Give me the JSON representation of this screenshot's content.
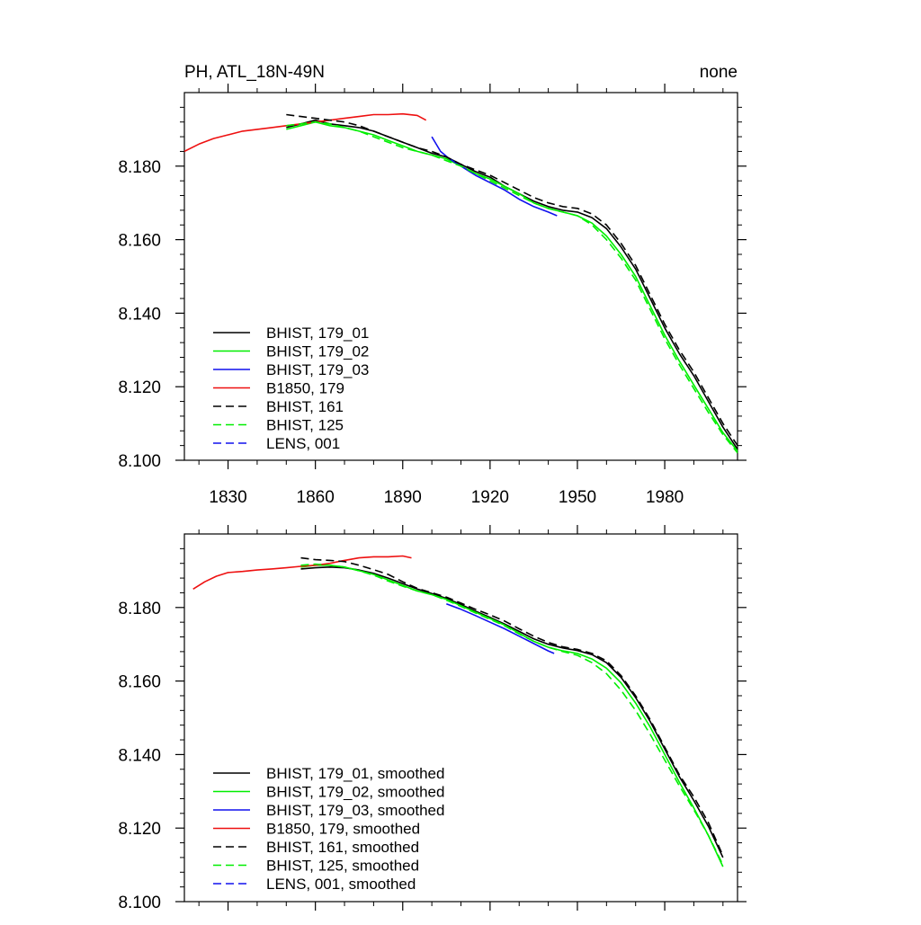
{
  "title_left": "PH, ATL_18N-49N",
  "title_right": "none",
  "chart_data": [
    {
      "type": "line",
      "panel": "top",
      "xlim": [
        1815,
        2005
      ],
      "ylim": [
        8.1,
        8.2
      ],
      "x_ticks": [
        1830,
        1860,
        1890,
        1920,
        1950,
        1980
      ],
      "x_tick_labels": [
        "1830",
        "1860",
        "1890",
        "1920",
        "1950",
        "1980"
      ],
      "y_ticks": [
        8.1,
        8.12,
        8.14,
        8.16,
        8.18
      ],
      "y_tick_labels": [
        "8.100",
        "8.120",
        "8.140",
        "8.160",
        "8.180"
      ],
      "legend_placement": "bottom-left",
      "series": [
        {
          "name": "BHIST, 179_01",
          "color": "#000000",
          "dash": "solid",
          "x": [
            1850,
            1855,
            1860,
            1865,
            1870,
            1875,
            1880,
            1885,
            1890,
            1895,
            1900,
            1905,
            1910,
            1915,
            1920,
            1925,
            1930,
            1935,
            1940,
            1945,
            1950,
            1955,
            1960,
            1965,
            1970,
            1975,
            1980,
            1985,
            1990,
            1995,
            2000,
            2005
          ],
          "y": [
            8.1905,
            8.1915,
            8.1925,
            8.1915,
            8.191,
            8.1905,
            8.1895,
            8.188,
            8.1865,
            8.185,
            8.1835,
            8.1825,
            8.1805,
            8.1785,
            8.177,
            8.1745,
            8.1725,
            8.1705,
            8.169,
            8.168,
            8.1675,
            8.166,
            8.163,
            8.158,
            8.152,
            8.144,
            8.136,
            8.129,
            8.123,
            8.116,
            8.109,
            8.103
          ]
        },
        {
          "name": "BHIST, 179_02",
          "color": "#00ee00",
          "dash": "solid",
          "x": [
            1850,
            1855,
            1860,
            1865,
            1870,
            1875,
            1880,
            1885,
            1890,
            1895,
            1900,
            1905,
            1910,
            1915,
            1920,
            1925,
            1930,
            1935,
            1940,
            1945,
            1950,
            1955,
            1960,
            1965,
            1970,
            1975,
            1980,
            1985,
            1990,
            1995,
            2000,
            2005
          ],
          "y": [
            8.19,
            8.191,
            8.192,
            8.191,
            8.1905,
            8.1895,
            8.1885,
            8.187,
            8.1855,
            8.184,
            8.183,
            8.182,
            8.18,
            8.178,
            8.1765,
            8.1745,
            8.1725,
            8.17,
            8.1685,
            8.1675,
            8.1665,
            8.1645,
            8.161,
            8.156,
            8.15,
            8.142,
            8.134,
            8.127,
            8.1205,
            8.114,
            8.1075,
            8.1025
          ]
        },
        {
          "name": "BHIST, 179_03",
          "color": "#1010ee",
          "dash": "solid",
          "x": [
            1900,
            1903,
            1906,
            1910,
            1915,
            1920,
            1925,
            1930,
            1935,
            1940,
            1943
          ],
          "y": [
            8.188,
            8.184,
            8.182,
            8.18,
            8.1775,
            8.1755,
            8.1735,
            8.171,
            8.169,
            8.1675,
            8.1665
          ]
        },
        {
          "name": "B1850, 179",
          "color": "#ee1010",
          "dash": "solid",
          "x": [
            1815,
            1820,
            1825,
            1830,
            1835,
            1840,
            1845,
            1850,
            1855,
            1860,
            1865,
            1870,
            1875,
            1880,
            1885,
            1890,
            1895,
            1898
          ],
          "y": [
            8.184,
            8.186,
            8.1875,
            8.1885,
            8.1895,
            8.19,
            8.1905,
            8.191,
            8.1915,
            8.192,
            8.1925,
            8.193,
            8.1935,
            8.194,
            8.194,
            8.1942,
            8.1938,
            8.1925
          ]
        },
        {
          "name": "BHIST, 161",
          "color": "#000000",
          "dash": "dash",
          "x": [
            1850,
            1855,
            1860,
            1865,
            1870,
            1875,
            1880,
            1885,
            1890,
            1895,
            1900,
            1905,
            1910,
            1915,
            1920,
            1925,
            1930,
            1935,
            1940,
            1945,
            1950,
            1955,
            1960,
            1965,
            1970,
            1975,
            1980,
            1985,
            1990,
            1995,
            2000,
            2005
          ],
          "y": [
            8.194,
            8.1935,
            8.193,
            8.1925,
            8.192,
            8.191,
            8.1895,
            8.188,
            8.1865,
            8.185,
            8.184,
            8.1825,
            8.1805,
            8.179,
            8.1775,
            8.1755,
            8.1735,
            8.1715,
            8.17,
            8.169,
            8.1685,
            8.167,
            8.164,
            8.159,
            8.153,
            8.145,
            8.137,
            8.13,
            8.124,
            8.117,
            8.11,
            8.104
          ]
        },
        {
          "name": "BHIST, 125",
          "color": "#00ee00",
          "dash": "dash",
          "x": [
            1850,
            1855,
            1860,
            1865,
            1870,
            1875,
            1880,
            1885,
            1890,
            1895,
            1900,
            1905,
            1910,
            1915,
            1920,
            1925,
            1930,
            1935,
            1940,
            1945,
            1950,
            1955,
            1960,
            1965,
            1970,
            1975,
            1980,
            1985,
            1990,
            1995,
            2000,
            2005
          ],
          "y": [
            8.191,
            8.1915,
            8.192,
            8.1915,
            8.1905,
            8.1895,
            8.188,
            8.1865,
            8.185,
            8.184,
            8.183,
            8.1815,
            8.18,
            8.178,
            8.176,
            8.174,
            8.172,
            8.17,
            8.1685,
            8.1675,
            8.1665,
            8.164,
            8.16,
            8.155,
            8.149,
            8.141,
            8.133,
            8.126,
            8.1195,
            8.113,
            8.107,
            8.102
          ]
        },
        {
          "name": "LENS, 001",
          "color": "#1010ee",
          "dash": "dash",
          "x": [],
          "y": []
        }
      ]
    },
    {
      "type": "line",
      "panel": "bottom",
      "xlim": [
        1815,
        2005
      ],
      "ylim": [
        8.1,
        8.2
      ],
      "x_ticks": [
        1830,
        1860,
        1890,
        1920,
        1950,
        1980
      ],
      "y_ticks": [
        8.1,
        8.12,
        8.14,
        8.16,
        8.18
      ],
      "y_tick_labels": [
        "8.100",
        "8.120",
        "8.140",
        "8.160",
        "8.180"
      ],
      "legend_placement": "bottom-left",
      "series": [
        {
          "name": "BHIST, 179_01, smoothed",
          "color": "#000000",
          "dash": "solid",
          "x": [
            1855,
            1860,
            1865,
            1870,
            1875,
            1880,
            1885,
            1890,
            1895,
            1900,
            1905,
            1910,
            1915,
            1920,
            1925,
            1930,
            1935,
            1940,
            1945,
            1950,
            1955,
            1960,
            1965,
            1970,
            1975,
            1980,
            1985,
            1990,
            1995,
            2000
          ],
          "y": [
            8.1905,
            8.1908,
            8.191,
            8.1908,
            8.1902,
            8.1893,
            8.188,
            8.1865,
            8.185,
            8.1838,
            8.1825,
            8.1808,
            8.179,
            8.1773,
            8.1755,
            8.1735,
            8.1715,
            8.17,
            8.169,
            8.1683,
            8.1672,
            8.165,
            8.161,
            8.1555,
            8.149,
            8.1415,
            8.134,
            8.1275,
            8.1205,
            8.112
          ]
        },
        {
          "name": "BHIST, 179_02, smoothed",
          "color": "#00ee00",
          "dash": "solid",
          "x": [
            1855,
            1860,
            1865,
            1870,
            1875,
            1880,
            1885,
            1890,
            1895,
            1900,
            1905,
            1910,
            1915,
            1920,
            1925,
            1930,
            1935,
            1940,
            1945,
            1950,
            1955,
            1960,
            1965,
            1970,
            1975,
            1980,
            1985,
            1990,
            1995,
            2000
          ],
          "y": [
            8.191,
            8.1915,
            8.1915,
            8.191,
            8.19,
            8.189,
            8.1875,
            8.186,
            8.1845,
            8.1835,
            8.1822,
            8.1805,
            8.1787,
            8.177,
            8.1752,
            8.173,
            8.1708,
            8.1692,
            8.1682,
            8.1675,
            8.166,
            8.1635,
            8.1595,
            8.154,
            8.1475,
            8.14,
            8.1325,
            8.1255,
            8.118,
            8.1095
          ]
        },
        {
          "name": "BHIST, 179_03, smoothed",
          "color": "#1010ee",
          "dash": "solid",
          "x": [
            1905,
            1910,
            1915,
            1920,
            1925,
            1930,
            1935,
            1940,
            1942
          ],
          "y": [
            8.181,
            8.1795,
            8.1778,
            8.176,
            8.1742,
            8.1722,
            8.1702,
            8.1682,
            8.1675
          ]
        },
        {
          "name": "B1850, 179, smoothed",
          "color": "#ee1010",
          "dash": "solid",
          "x": [
            1818,
            1822,
            1826,
            1830,
            1835,
            1840,
            1845,
            1850,
            1855,
            1860,
            1865,
            1870,
            1875,
            1880,
            1885,
            1890,
            1893
          ],
          "y": [
            8.185,
            8.187,
            8.1885,
            8.1895,
            8.1898,
            8.1902,
            8.1905,
            8.1908,
            8.1912,
            8.1915,
            8.192,
            8.1928,
            8.1935,
            8.1938,
            8.1938,
            8.194,
            8.1935
          ]
        },
        {
          "name": "BHIST, 161, smoothed",
          "color": "#000000",
          "dash": "dash",
          "x": [
            1855,
            1860,
            1865,
            1870,
            1875,
            1880,
            1885,
            1890,
            1895,
            1900,
            1905,
            1910,
            1915,
            1920,
            1925,
            1930,
            1935,
            1940,
            1945,
            1950,
            1955,
            1960,
            1965,
            1970,
            1975,
            1980,
            1985,
            1990,
            1995,
            2000
          ],
          "y": [
            8.1935,
            8.193,
            8.1928,
            8.1925,
            8.1915,
            8.1903,
            8.189,
            8.187,
            8.1852,
            8.184,
            8.1828,
            8.1812,
            8.1795,
            8.178,
            8.1763,
            8.1742,
            8.1722,
            8.1705,
            8.1693,
            8.1686,
            8.1675,
            8.1655,
            8.1615,
            8.156,
            8.1495,
            8.142,
            8.1345,
            8.1285,
            8.1215,
            8.1125
          ]
        },
        {
          "name": "BHIST, 125, smoothed",
          "color": "#00ee00",
          "dash": "dash",
          "x": [
            1855,
            1860,
            1865,
            1870,
            1875,
            1880,
            1885,
            1890,
            1895,
            1900,
            1905,
            1910,
            1915,
            1920,
            1925,
            1930,
            1935,
            1940,
            1945,
            1950,
            1955,
            1960,
            1965,
            1970,
            1975,
            1980,
            1985,
            1990,
            1995,
            2000
          ],
          "y": [
            8.1915,
            8.1918,
            8.1915,
            8.191,
            8.19,
            8.1888,
            8.1872,
            8.1858,
            8.1845,
            8.1835,
            8.182,
            8.1803,
            8.1785,
            8.1768,
            8.175,
            8.1728,
            8.1708,
            8.1692,
            8.168,
            8.167,
            8.165,
            8.162,
            8.1575,
            8.152,
            8.1455,
            8.1385,
            8.1315,
            8.125,
            8.118,
            8.11
          ]
        },
        {
          "name": "LENS, 001, smoothed",
          "color": "#1010ee",
          "dash": "dash",
          "x": [],
          "y": []
        }
      ]
    }
  ]
}
